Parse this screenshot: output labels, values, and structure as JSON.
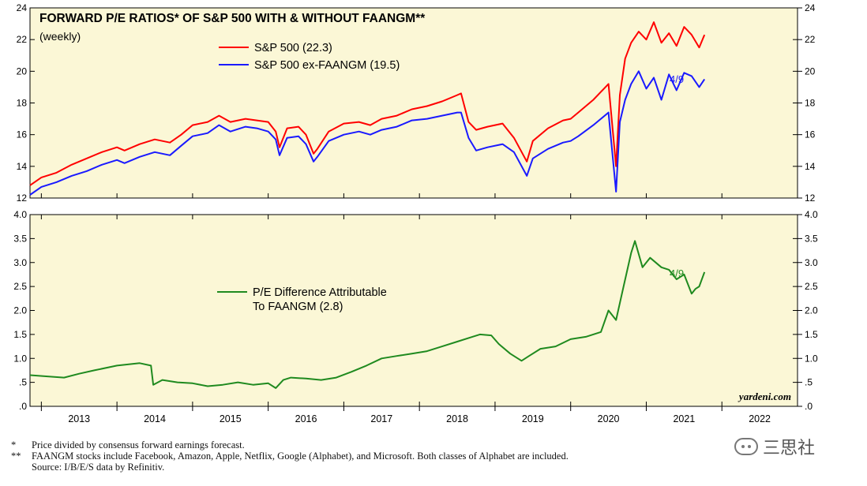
{
  "chart_data": [
    {
      "type": "line",
      "title": "FORWARD P/E RATIOS* OF S&P 500 WITH & WITHOUT FAANGM**",
      "subtitle": "(weekly)",
      "ylim": [
        12,
        24
      ],
      "yticks": [
        "12",
        "14",
        "16",
        "18",
        "20",
        "22",
        "24"
      ],
      "annotation": "4/9",
      "grid": false,
      "legend_position": "top-left",
      "series": [
        {
          "name": "S&P 500 (22.3)",
          "color": "#ff0000",
          "x": [
            2012.35,
            2012.5,
            2012.7,
            2012.9,
            2013.1,
            2013.3,
            2013.5,
            2013.6,
            2013.8,
            2014.0,
            2014.2,
            2014.35,
            2014.5,
            2014.7,
            2014.85,
            2015.0,
            2015.2,
            2015.35,
            2015.5,
            2015.6,
            2015.65,
            2015.75,
            2015.9,
            2016.0,
            2016.1,
            2016.15,
            2016.3,
            2016.5,
            2016.7,
            2016.85,
            2017.0,
            2017.2,
            2017.4,
            2017.6,
            2017.8,
            2018.0,
            2018.05,
            2018.15,
            2018.25,
            2018.4,
            2018.6,
            2018.75,
            2018.92,
            2019.0,
            2019.2,
            2019.4,
            2019.5,
            2019.6,
            2019.8,
            2020.0,
            2020.1,
            2020.15,
            2020.22,
            2020.3,
            2020.4,
            2020.5,
            2020.6,
            2020.7,
            2020.8,
            2020.9,
            2021.0,
            2021.1,
            2021.2,
            2021.27
          ],
          "values": [
            12.8,
            13.3,
            13.6,
            14.1,
            14.5,
            14.9,
            15.2,
            15.0,
            15.4,
            15.7,
            15.5,
            16.0,
            16.6,
            16.8,
            17.2,
            16.8,
            17.0,
            16.9,
            16.8,
            16.2,
            15.2,
            16.4,
            16.5,
            16.0,
            14.8,
            15.1,
            16.2,
            16.7,
            16.8,
            16.6,
            17.0,
            17.2,
            17.6,
            17.8,
            18.1,
            18.5,
            18.6,
            16.8,
            16.3,
            16.5,
            16.7,
            15.8,
            14.3,
            15.6,
            16.4,
            16.9,
            17.0,
            17.4,
            18.2,
            19.2,
            14.0,
            18.5,
            20.8,
            21.8,
            22.5,
            22.0,
            23.1,
            21.8,
            22.4,
            21.6,
            22.8,
            22.3,
            21.5,
            22.3
          ]
        },
        {
          "name": "S&P 500 ex-FAANGM (19.5)",
          "color": "#1a1aff",
          "x": [
            2012.35,
            2012.5,
            2012.7,
            2012.9,
            2013.1,
            2013.3,
            2013.5,
            2013.6,
            2013.8,
            2014.0,
            2014.2,
            2014.35,
            2014.5,
            2014.7,
            2014.85,
            2015.0,
            2015.2,
            2015.35,
            2015.5,
            2015.6,
            2015.65,
            2015.75,
            2015.9,
            2016.0,
            2016.1,
            2016.15,
            2016.3,
            2016.5,
            2016.7,
            2016.85,
            2017.0,
            2017.2,
            2017.4,
            2017.6,
            2017.8,
            2018.0,
            2018.05,
            2018.15,
            2018.25,
            2018.4,
            2018.6,
            2018.75,
            2018.92,
            2019.0,
            2019.2,
            2019.4,
            2019.5,
            2019.6,
            2019.8,
            2020.0,
            2020.1,
            2020.15,
            2020.22,
            2020.3,
            2020.4,
            2020.5,
            2020.6,
            2020.7,
            2020.8,
            2020.9,
            2021.0,
            2021.1,
            2021.2,
            2021.27
          ],
          "values": [
            12.2,
            12.7,
            13.0,
            13.4,
            13.7,
            14.1,
            14.4,
            14.2,
            14.6,
            14.9,
            14.7,
            15.3,
            15.9,
            16.1,
            16.6,
            16.2,
            16.5,
            16.4,
            16.2,
            15.7,
            14.7,
            15.8,
            15.9,
            15.4,
            14.3,
            14.6,
            15.6,
            16.0,
            16.2,
            16.0,
            16.3,
            16.5,
            16.9,
            17.0,
            17.2,
            17.4,
            17.4,
            15.8,
            15.0,
            15.2,
            15.4,
            14.9,
            13.4,
            14.5,
            15.1,
            15.5,
            15.6,
            15.9,
            16.6,
            17.4,
            12.4,
            16.8,
            18.2,
            19.2,
            20.0,
            18.9,
            19.6,
            18.2,
            19.8,
            18.8,
            19.9,
            19.7,
            19.0,
            19.5
          ]
        }
      ]
    },
    {
      "type": "line",
      "ylim": [
        0,
        4
      ],
      "yticks": [
        ".0",
        ".5",
        "1.0",
        "1.5",
        "2.0",
        "2.5",
        "3.0",
        "3.5",
        "4.0"
      ],
      "yticks_right": [
        ".0",
        ".5",
        "1.0",
        "1.5",
        "2.0",
        "2.5",
        "3.0",
        "3.5",
        "4.0"
      ],
      "xticks": [
        "2013",
        "2014",
        "2015",
        "2016",
        "2017",
        "2018",
        "2019",
        "2020",
        "2021",
        "2022"
      ],
      "xlim": [
        2012.35,
        2022.5
      ],
      "annotation": "4/9",
      "source": "yardeni.com",
      "grid": false,
      "legend_position": "center-left",
      "series": [
        {
          "name_lines": [
            "P/E Difference Attributable",
            "To FAANGM (2.8)"
          ],
          "color": "#1f8a1f",
          "x": [
            2012.35,
            2012.6,
            2012.8,
            2013.0,
            2013.2,
            2013.5,
            2013.8,
            2013.95,
            2013.98,
            2014.1,
            2014.3,
            2014.5,
            2014.7,
            2014.9,
            2015.1,
            2015.3,
            2015.5,
            2015.6,
            2015.7,
            2015.8,
            2016.0,
            2016.2,
            2016.4,
            2016.6,
            2016.8,
            2017.0,
            2017.2,
            2017.4,
            2017.6,
            2017.8,
            2018.0,
            2018.2,
            2018.3,
            2018.45,
            2018.55,
            2018.7,
            2018.85,
            2018.95,
            2019.1,
            2019.3,
            2019.5,
            2019.7,
            2019.9,
            2020.0,
            2020.1,
            2020.2,
            2020.3,
            2020.35,
            2020.45,
            2020.55,
            2020.7,
            2020.8,
            2020.9,
            2021.0,
            2021.1,
            2021.15,
            2021.2,
            2021.27
          ],
          "values": [
            0.65,
            0.62,
            0.6,
            0.68,
            0.75,
            0.85,
            0.9,
            0.85,
            0.45,
            0.55,
            0.5,
            0.48,
            0.42,
            0.45,
            0.5,
            0.45,
            0.48,
            0.38,
            0.55,
            0.6,
            0.58,
            0.55,
            0.6,
            0.72,
            0.85,
            1.0,
            1.05,
            1.1,
            1.15,
            1.25,
            1.35,
            1.45,
            1.5,
            1.48,
            1.3,
            1.1,
            0.95,
            1.05,
            1.2,
            1.25,
            1.4,
            1.45,
            1.55,
            2.0,
            1.8,
            2.5,
            3.2,
            3.45,
            2.9,
            3.1,
            2.9,
            2.85,
            2.65,
            2.75,
            2.35,
            2.45,
            2.5,
            2.8
          ]
        }
      ]
    }
  ],
  "footnotes": [
    {
      "mark": "*",
      "text": "Price divided by consensus forward earnings forecast."
    },
    {
      "mark": "**",
      "text": "FAANGM stocks include Facebook, Amazon, Apple, Netflix, Google (Alphabet), and Microsoft. Both classes of Alphabet are included."
    },
    {
      "mark": "",
      "text": "Source: I/B/E/S data by Refinitiv."
    }
  ],
  "watermark": "三思社"
}
